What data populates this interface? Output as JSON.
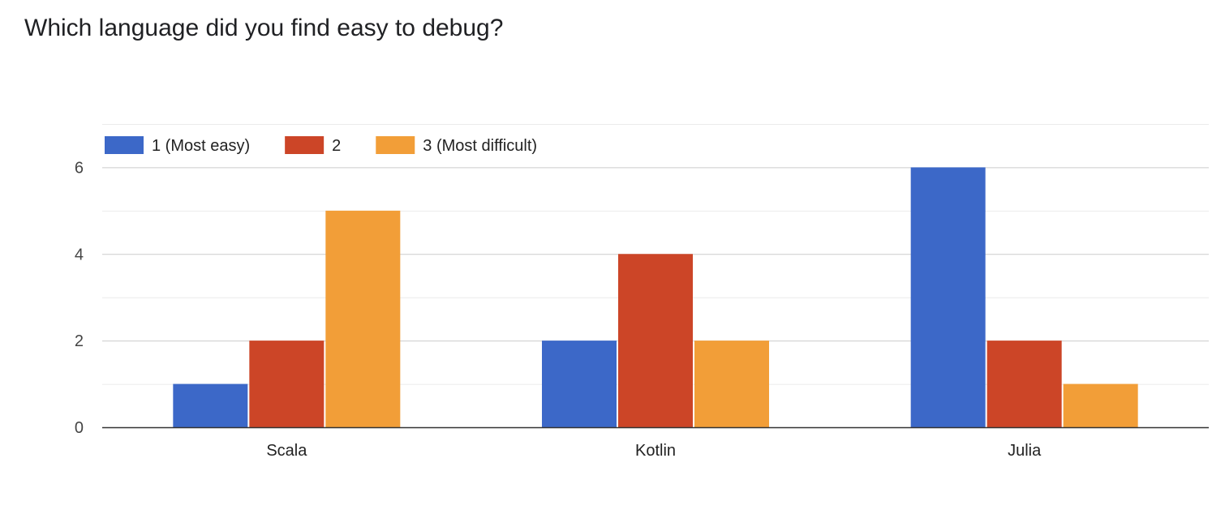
{
  "title": "Which language did you find easy to debug?",
  "chart_data": {
    "type": "bar",
    "title": "Which language did you find easy to debug?",
    "categories": [
      "Scala",
      "Kotlin",
      "Julia"
    ],
    "series": [
      {
        "name": "1 (Most easy)",
        "color": "#3c68c8",
        "values": [
          1,
          2,
          6
        ]
      },
      {
        "name": "2",
        "color": "#cc4527",
        "values": [
          2,
          4,
          2
        ]
      },
      {
        "name": "3 (Most difficult)",
        "color": "#f29e38",
        "values": [
          5,
          2,
          1
        ]
      }
    ],
    "yticks": [
      "0",
      "2",
      "4",
      "6"
    ],
    "ylim": [
      0,
      7
    ],
    "legend": "top-left",
    "grid": true,
    "xlabel": "",
    "ylabel": ""
  }
}
